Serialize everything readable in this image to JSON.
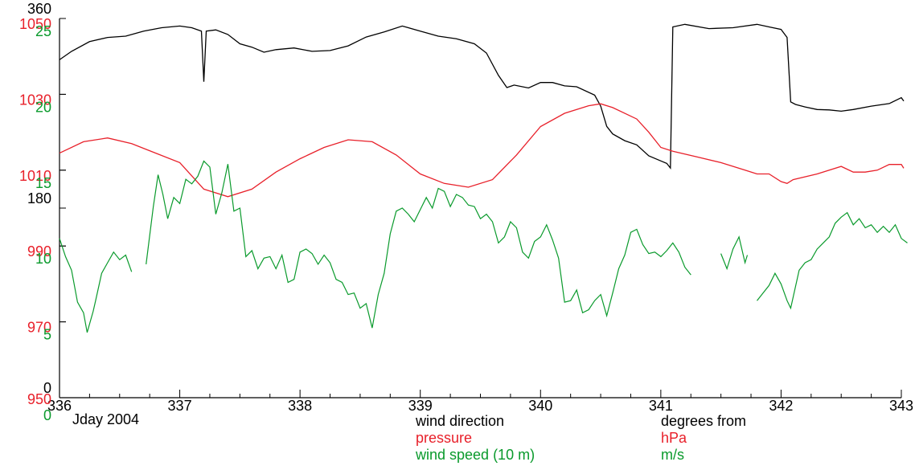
{
  "colors": {
    "direction": "#000000",
    "pressure": "#e8202a",
    "speed": "#0a9a2c",
    "axis": "#000000"
  },
  "axis_caption": "Jday 2004",
  "legend": {
    "names": [
      "wind direction",
      "pressure",
      "wind speed (10 m)"
    ],
    "units": [
      "degrees from",
      "hPa",
      "m/s"
    ]
  },
  "chart_data": {
    "type": "line",
    "x_label": "Jday 2004",
    "xlim": [
      336,
      343
    ],
    "x_ticks": [
      "336",
      "337",
      "338",
      "339",
      "340",
      "341",
      "342",
      "343"
    ],
    "y_axes": [
      {
        "name": "wind direction",
        "unit": "degrees from",
        "color": "#000000",
        "range": [
          0,
          360
        ],
        "ticks": [
          "360",
          "180",
          "0"
        ]
      },
      {
        "name": "pressure",
        "unit": "hPa",
        "color": "#e8202a",
        "range": [
          950,
          1050
        ],
        "ticks": [
          "1050",
          "1030",
          "1010",
          "990",
          "970",
          "950"
        ]
      },
      {
        "name": "wind speed (10 m)",
        "unit": "m/s",
        "color": "#0a9a2c",
        "range": [
          0,
          25
        ],
        "ticks": [
          "25",
          "20",
          "15",
          "10",
          "5",
          "0"
        ]
      }
    ],
    "direction_offset": 360,
    "series": [
      {
        "name": "wind direction",
        "unit": "degrees from",
        "points": [
          [
            336.0,
            262
          ],
          [
            336.1,
            282
          ],
          [
            336.25,
            305
          ],
          [
            336.4,
            315
          ],
          [
            336.55,
            318
          ],
          [
            336.7,
            330
          ],
          [
            336.85,
            338
          ],
          [
            337.0,
            342
          ],
          [
            337.1,
            338
          ],
          [
            337.18,
            330
          ],
          [
            337.2,
            210
          ],
          [
            337.22,
            330
          ],
          [
            337.3,
            333
          ],
          [
            337.4,
            322
          ],
          [
            337.5,
            300
          ],
          [
            337.6,
            292
          ],
          [
            337.7,
            280
          ],
          [
            337.8,
            286
          ],
          [
            337.95,
            290
          ],
          [
            338.1,
            282
          ],
          [
            338.25,
            284
          ],
          [
            338.4,
            295
          ],
          [
            338.55,
            316
          ],
          [
            338.7,
            328
          ],
          [
            338.85,
            342
          ],
          [
            339.0,
            330
          ],
          [
            339.15,
            318
          ],
          [
            339.3,
            312
          ],
          [
            339.45,
            300
          ],
          [
            339.55,
            278
          ],
          [
            339.65,
            225
          ],
          [
            339.72,
            196
          ],
          [
            339.78,
            202
          ],
          [
            339.9,
            195
          ],
          [
            340.0,
            208
          ],
          [
            340.1,
            208
          ],
          [
            340.2,
            200
          ],
          [
            340.3,
            198
          ],
          [
            340.45,
            178
          ],
          [
            340.5,
            152
          ],
          [
            340.55,
            104
          ],
          [
            340.6,
            86
          ],
          [
            340.7,
            70
          ],
          [
            340.8,
            60
          ],
          [
            340.9,
            34
          ],
          [
            341.0,
            22
          ],
          [
            341.05,
            16
          ],
          [
            341.08,
            5
          ],
          [
            341.1,
            340
          ],
          [
            341.2,
            346
          ],
          [
            341.4,
            336
          ],
          [
            341.6,
            338
          ],
          [
            341.8,
            346
          ],
          [
            341.9,
            340
          ],
          [
            342.0,
            334
          ],
          [
            342.05,
            315
          ],
          [
            342.08,
            162
          ],
          [
            342.12,
            156
          ],
          [
            342.2,
            150
          ],
          [
            342.3,
            144
          ],
          [
            342.4,
            143
          ],
          [
            342.5,
            140
          ],
          [
            342.6,
            144
          ],
          [
            342.75,
            152
          ],
          [
            342.9,
            158
          ],
          [
            343.0,
            172
          ],
          [
            343.02,
            164
          ]
        ]
      },
      {
        "name": "pressure",
        "unit": "hPa",
        "points": [
          [
            336.0,
            1014.5
          ],
          [
            336.2,
            1017.5
          ],
          [
            336.4,
            1018.5
          ],
          [
            336.6,
            1017
          ],
          [
            336.8,
            1014.5
          ],
          [
            337.0,
            1012
          ],
          [
            337.2,
            1005
          ],
          [
            337.4,
            1003
          ],
          [
            337.6,
            1005
          ],
          [
            337.8,
            1009.5
          ],
          [
            338.0,
            1013
          ],
          [
            338.2,
            1016
          ],
          [
            338.4,
            1018
          ],
          [
            338.6,
            1017.5
          ],
          [
            338.8,
            1014
          ],
          [
            339.0,
            1009
          ],
          [
            339.2,
            1006.5
          ],
          [
            339.4,
            1005.5
          ],
          [
            339.6,
            1007.5
          ],
          [
            339.8,
            1014
          ],
          [
            340.0,
            1021.5
          ],
          [
            340.2,
            1025
          ],
          [
            340.4,
            1027
          ],
          [
            340.5,
            1027.5
          ],
          [
            340.6,
            1026.5
          ],
          [
            340.8,
            1023.5
          ],
          [
            340.9,
            1020
          ],
          [
            341.0,
            1016
          ],
          [
            341.1,
            1015
          ],
          [
            341.3,
            1013.5
          ],
          [
            341.5,
            1012
          ],
          [
            341.7,
            1010
          ],
          [
            341.8,
            1009
          ],
          [
            341.9,
            1009
          ],
          [
            342.0,
            1007
          ],
          [
            342.05,
            1006.5
          ],
          [
            342.1,
            1007.5
          ],
          [
            342.3,
            1009
          ],
          [
            342.5,
            1011
          ],
          [
            342.6,
            1009.5
          ],
          [
            342.7,
            1009.5
          ],
          [
            342.8,
            1010
          ],
          [
            342.9,
            1011.5
          ],
          [
            343.0,
            1011.5
          ],
          [
            343.02,
            1010.5
          ]
        ]
      },
      {
        "name": "wind speed (10 m)",
        "unit": "m/s",
        "segments": [
          [
            [
              336.0,
              10.5
            ],
            [
              336.05,
              9.3
            ],
            [
              336.1,
              8.4
            ],
            [
              336.15,
              6.3
            ],
            [
              336.2,
              5.6
            ],
            [
              336.23,
              4.3
            ],
            [
              336.28,
              5.7
            ],
            [
              336.3,
              6.4
            ],
            [
              336.35,
              8.2
            ],
            [
              336.4,
              8.9
            ],
            [
              336.45,
              9.6
            ],
            [
              336.5,
              9.1
            ],
            [
              336.55,
              9.4
            ],
            [
              336.6,
              8.3
            ]
          ],
          [
            [
              336.72,
              8.8
            ],
            [
              336.78,
              12.6
            ],
            [
              336.82,
              14.7
            ],
            [
              336.86,
              13.4
            ],
            [
              336.9,
              11.8
            ],
            [
              336.95,
              13.2
            ],
            [
              337.0,
              12.8
            ],
            [
              337.05,
              14.4
            ],
            [
              337.1,
              14.1
            ],
            [
              337.15,
              14.6
            ],
            [
              337.2,
              15.6
            ],
            [
              337.25,
              15.2
            ],
            [
              337.3,
              12.1
            ],
            [
              337.35,
              13.5
            ],
            [
              337.4,
              15.4
            ],
            [
              337.45,
              12.3
            ],
            [
              337.5,
              12.5
            ],
            [
              337.55,
              9.3
            ],
            [
              337.6,
              9.7
            ],
            [
              337.65,
              8.5
            ],
            [
              337.7,
              9.2
            ],
            [
              337.75,
              9.3
            ],
            [
              337.8,
              8.5
            ],
            [
              337.85,
              9.4
            ],
            [
              337.9,
              7.6
            ],
            [
              337.95,
              7.8
            ],
            [
              338.0,
              9.6
            ],
            [
              338.05,
              9.8
            ],
            [
              338.1,
              9.5
            ],
            [
              338.15,
              8.8
            ],
            [
              338.2,
              9.4
            ],
            [
              338.25,
              8.9
            ],
            [
              338.3,
              7.8
            ],
            [
              338.35,
              7.6
            ],
            [
              338.4,
              6.8
            ],
            [
              338.45,
              6.9
            ],
            [
              338.5,
              5.9
            ],
            [
              338.55,
              6.2
            ],
            [
              338.6,
              4.6
            ],
            [
              338.65,
              6.8
            ],
            [
              338.7,
              8.2
            ],
            [
              338.75,
              10.8
            ],
            [
              338.8,
              12.3
            ],
            [
              338.85,
              12.5
            ],
            [
              338.9,
              12.1
            ],
            [
              338.95,
              11.6
            ],
            [
              339.0,
              12.4
            ],
            [
              339.05,
              13.2
            ],
            [
              339.1,
              12.5
            ],
            [
              339.15,
              13.8
            ],
            [
              339.2,
              13.6
            ],
            [
              339.25,
              12.6
            ],
            [
              339.3,
              13.4
            ],
            [
              339.35,
              13.2
            ],
            [
              339.4,
              12.7
            ],
            [
              339.45,
              12.6
            ],
            [
              339.5,
              11.8
            ],
            [
              339.55,
              12.1
            ],
            [
              339.6,
              11.6
            ],
            [
              339.65,
              10.2
            ],
            [
              339.7,
              10.6
            ],
            [
              339.75,
              11.6
            ],
            [
              339.8,
              11.2
            ],
            [
              339.85,
              9.6
            ],
            [
              339.9,
              9.2
            ],
            [
              339.95,
              10.3
            ],
            [
              340.0,
              10.6
            ],
            [
              340.05,
              11.4
            ],
            [
              340.1,
              10.4
            ],
            [
              340.15,
              9.2
            ],
            [
              340.2,
              6.3
            ],
            [
              340.25,
              6.4
            ],
            [
              340.3,
              7.1
            ],
            [
              340.35,
              5.6
            ],
            [
              340.4,
              5.8
            ],
            [
              340.45,
              6.4
            ],
            [
              340.5,
              6.8
            ],
            [
              340.55,
              5.4
            ],
            [
              340.6,
              6.9
            ],
            [
              340.65,
              8.5
            ],
            [
              340.7,
              9.4
            ],
            [
              340.75,
              10.9
            ],
            [
              340.8,
              11.1
            ],
            [
              340.85,
              10.1
            ],
            [
              340.9,
              9.5
            ],
            [
              340.95,
              9.6
            ],
            [
              341.0,
              9.3
            ],
            [
              341.05,
              9.7
            ],
            [
              341.1,
              10.2
            ],
            [
              341.15,
              9.6
            ],
            [
              341.2,
              8.6
            ],
            [
              341.25,
              8.1
            ]
          ],
          [
            [
              341.5,
              9.5
            ],
            [
              341.55,
              8.5
            ],
            [
              341.6,
              9.8
            ],
            [
              341.65,
              10.6
            ],
            [
              341.7,
              8.9
            ],
            [
              341.72,
              9.4
            ]
          ],
          [
            [
              341.8,
              6.4
            ],
            [
              341.85,
              6.9
            ],
            [
              341.9,
              7.4
            ],
            [
              341.95,
              8.2
            ],
            [
              342.0,
              7.5
            ],
            [
              342.05,
              6.4
            ],
            [
              342.08,
              5.9
            ],
            [
              342.15,
              8.4
            ],
            [
              342.2,
              8.9
            ],
            [
              342.25,
              9.1
            ],
            [
              342.3,
              9.8
            ],
            [
              342.35,
              10.2
            ],
            [
              342.4,
              10.6
            ],
            [
              342.45,
              11.5
            ],
            [
              342.5,
              11.9
            ],
            [
              342.55,
              12.2
            ],
            [
              342.6,
              11.4
            ],
            [
              342.65,
              11.8
            ],
            [
              342.7,
              11.2
            ],
            [
              342.75,
              11.4
            ],
            [
              342.8,
              10.9
            ],
            [
              342.85,
              11.3
            ],
            [
              342.9,
              10.9
            ],
            [
              342.95,
              11.4
            ],
            [
              343.0,
              10.5
            ],
            [
              343.05,
              10.2
            ]
          ]
        ]
      }
    ]
  }
}
